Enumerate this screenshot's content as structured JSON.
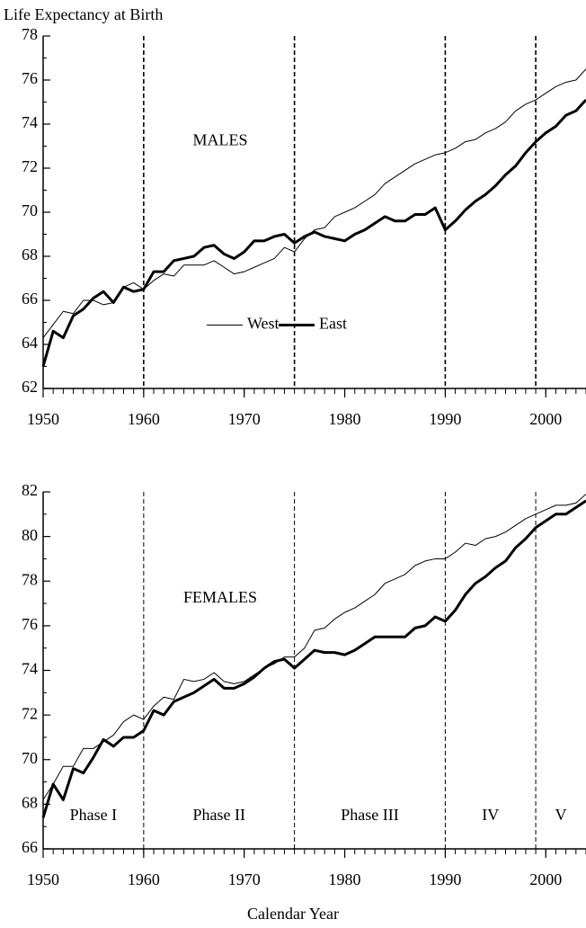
{
  "chart_data": [
    {
      "type": "line",
      "title": "Life Expectancy at Birth",
      "label": "MALES",
      "x": [
        1950,
        1951,
        1952,
        1953,
        1954,
        1955,
        1956,
        1957,
        1958,
        1959,
        1960,
        1961,
        1962,
        1963,
        1964,
        1965,
        1966,
        1967,
        1968,
        1969,
        1970,
        1971,
        1972,
        1973,
        1974,
        1975,
        1976,
        1977,
        1978,
        1979,
        1980,
        1981,
        1982,
        1983,
        1984,
        1985,
        1986,
        1987,
        1988,
        1989,
        1990,
        1991,
        1992,
        1993,
        1994,
        1995,
        1996,
        1997,
        1998,
        1999,
        2000,
        2001,
        2002,
        2003,
        2004
      ],
      "series": [
        {
          "name": "West",
          "color": "#000000",
          "width": 1,
          "values": [
            64.3,
            64.9,
            65.5,
            65.4,
            66.0,
            66.0,
            65.8,
            65.9,
            66.6,
            66.8,
            66.5,
            66.9,
            67.2,
            67.1,
            67.6,
            67.6,
            67.6,
            67.8,
            67.5,
            67.2,
            67.3,
            67.5,
            67.7,
            67.9,
            68.4,
            68.2,
            68.8,
            69.2,
            69.3,
            69.8,
            70.0,
            70.2,
            70.5,
            70.8,
            71.3,
            71.6,
            71.9,
            72.2,
            72.4,
            72.6,
            72.7,
            72.9,
            73.2,
            73.3,
            73.6,
            73.8,
            74.1,
            74.6,
            74.9,
            75.1,
            75.4,
            75.7,
            75.9,
            76.0,
            76.5
          ]
        },
        {
          "name": "East",
          "color": "#000000",
          "width": 3,
          "values": [
            63.0,
            64.6,
            64.3,
            65.3,
            65.6,
            66.1,
            66.4,
            65.9,
            66.6,
            66.4,
            66.5,
            67.3,
            67.3,
            67.8,
            67.9,
            68.0,
            68.4,
            68.5,
            68.1,
            67.9,
            68.2,
            68.7,
            68.7,
            68.9,
            69.0,
            68.6,
            68.9,
            69.1,
            68.9,
            68.8,
            68.7,
            69.0,
            69.2,
            69.5,
            69.8,
            69.6,
            69.6,
            69.9,
            69.9,
            70.2,
            69.2,
            69.6,
            70.1,
            70.5,
            70.8,
            71.2,
            71.7,
            72.1,
            72.7,
            73.2,
            73.6,
            73.9,
            74.4,
            74.6,
            75.1
          ]
        }
      ],
      "xlim": [
        1950,
        2004
      ],
      "xticks": [
        1950,
        1960,
        1970,
        1980,
        1990,
        2000
      ],
      "ylim": [
        62,
        78
      ],
      "yticks": [
        62,
        64,
        66,
        68,
        70,
        72,
        74,
        76,
        78
      ],
      "vlines": [
        1960,
        1975,
        1990,
        1999
      ],
      "legend": "bottom-center"
    },
    {
      "type": "line",
      "label": "FEMALES",
      "xlabel": "Calendar Year",
      "x": [
        1950,
        1951,
        1952,
        1953,
        1954,
        1955,
        1956,
        1957,
        1958,
        1959,
        1960,
        1961,
        1962,
        1963,
        1964,
        1965,
        1966,
        1967,
        1968,
        1969,
        1970,
        1971,
        1972,
        1973,
        1974,
        1975,
        1976,
        1977,
        1978,
        1979,
        1980,
        1981,
        1982,
        1983,
        1984,
        1985,
        1986,
        1987,
        1988,
        1989,
        1990,
        1991,
        1992,
        1993,
        1994,
        1995,
        1996,
        1997,
        1998,
        1999,
        2000,
        2001,
        2002,
        2003,
        2004
      ],
      "series": [
        {
          "name": "West",
          "color": "#000000",
          "width": 1,
          "values": [
            68.2,
            68.9,
            69.7,
            69.7,
            70.5,
            70.5,
            70.8,
            71.1,
            71.7,
            72.0,
            71.8,
            72.4,
            72.8,
            72.7,
            73.6,
            73.5,
            73.6,
            73.9,
            73.5,
            73.4,
            73.5,
            73.8,
            74.1,
            74.3,
            74.6,
            74.6,
            75.0,
            75.8,
            75.9,
            76.3,
            76.6,
            76.8,
            77.1,
            77.4,
            77.9,
            78.1,
            78.3,
            78.7,
            78.9,
            79.0,
            79.0,
            79.3,
            79.7,
            79.6,
            79.9,
            80.0,
            80.2,
            80.5,
            80.8,
            81.0,
            81.2,
            81.4,
            81.4,
            81.5,
            81.9
          ]
        },
        {
          "name": "East",
          "color": "#000000",
          "width": 3,
          "values": [
            67.4,
            68.9,
            68.2,
            69.6,
            69.4,
            70.1,
            70.9,
            70.6,
            71.0,
            71.0,
            71.3,
            72.2,
            72.0,
            72.6,
            72.8,
            73.0,
            73.3,
            73.6,
            73.2,
            73.2,
            73.4,
            73.7,
            74.1,
            74.4,
            74.5,
            74.1,
            74.5,
            74.9,
            74.8,
            74.8,
            74.7,
            74.9,
            75.2,
            75.5,
            75.5,
            75.5,
            75.5,
            75.9,
            76.0,
            76.4,
            76.2,
            76.7,
            77.4,
            77.9,
            78.2,
            78.6,
            78.9,
            79.5,
            79.9,
            80.4,
            80.7,
            81.0,
            81.0,
            81.3,
            81.6
          ]
        }
      ],
      "xlim": [
        1950,
        2004
      ],
      "xticks": [
        1950,
        1960,
        1970,
        1980,
        1990,
        2000
      ],
      "ylim": [
        66,
        82
      ],
      "yticks": [
        66,
        68,
        70,
        72,
        74,
        76,
        78,
        80,
        82
      ],
      "vlines": [
        1960,
        1975,
        1990,
        1999
      ],
      "phases": [
        "Phase I",
        "Phase II",
        "Phase III",
        "IV",
        "V"
      ]
    }
  ]
}
